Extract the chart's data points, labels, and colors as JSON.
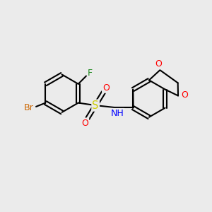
{
  "background_color": "#ebebeb",
  "atom_colors": {
    "C": "#000000",
    "Br": "#cc6600",
    "F": "#228B22",
    "S": "#cccc00",
    "N": "#0000ff",
    "O": "#ff0000"
  },
  "bond_color": "#000000",
  "font_size": 8.5,
  "lw": 1.5,
  "figsize": [
    3.0,
    3.0
  ],
  "dpi": 100
}
